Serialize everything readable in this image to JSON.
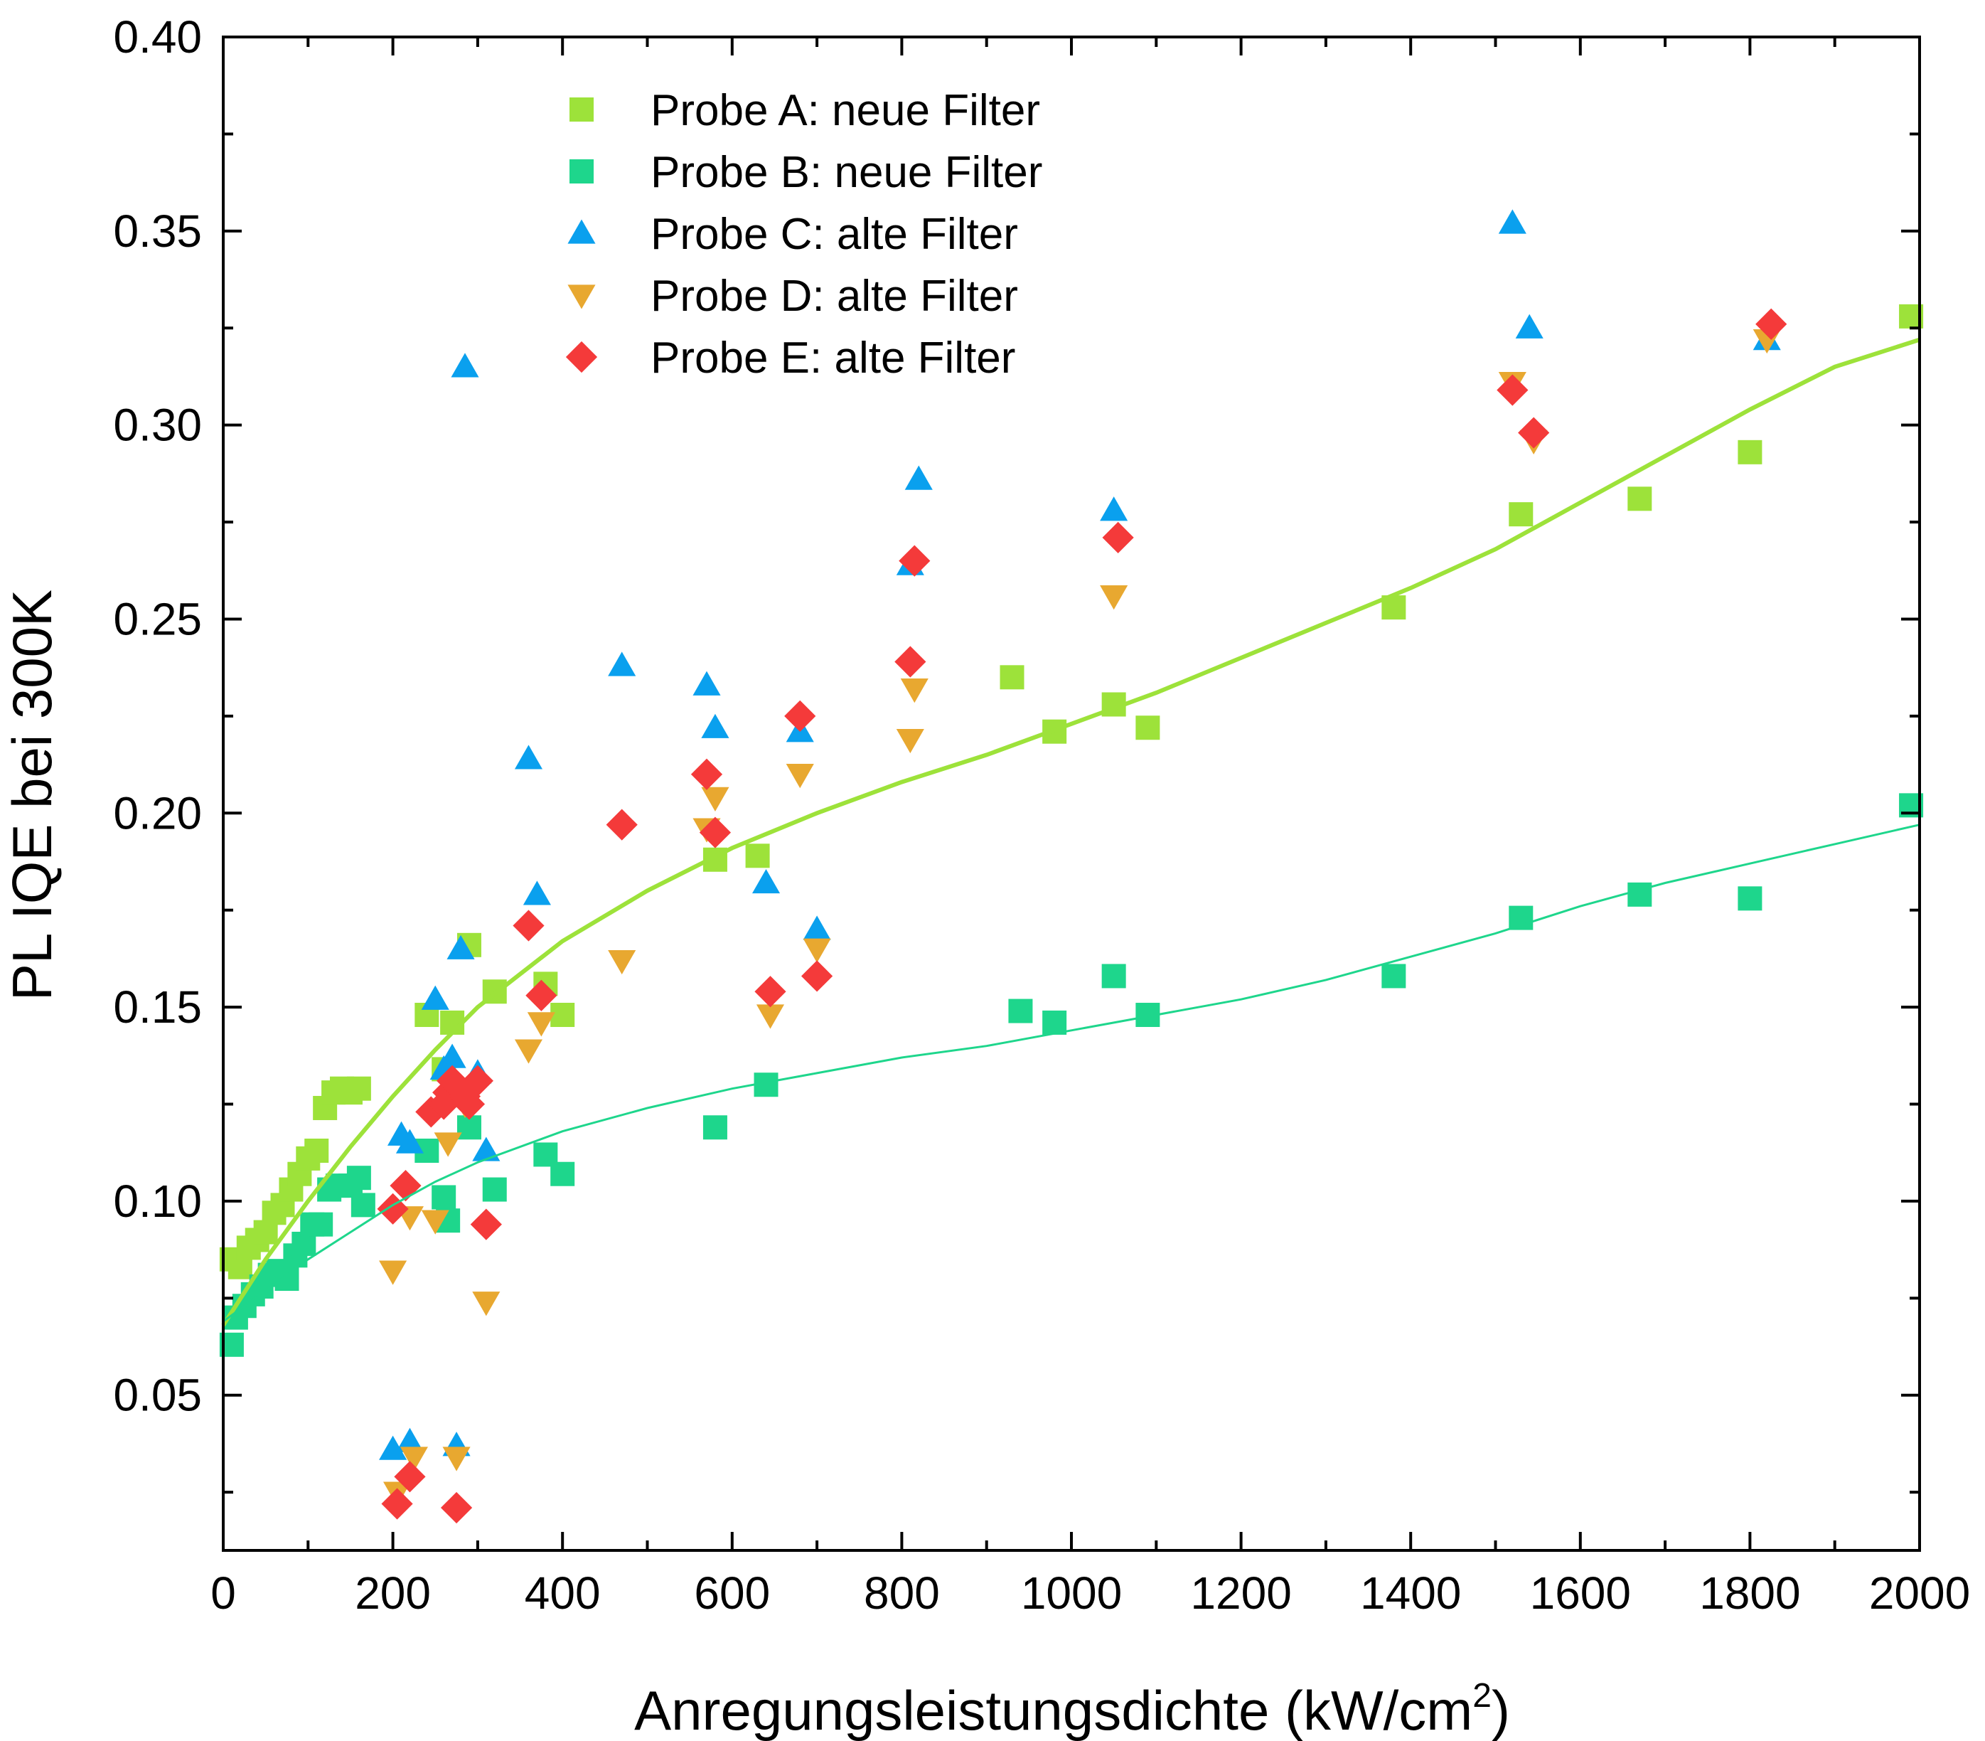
{
  "chart_data": {
    "type": "scatter",
    "title": "",
    "xlabel": "Anregungsleistungsdichte (kW/cm",
    "xlabel_sup": "2",
    "xlabel_close": ")",
    "ylabel": "PL IQE bei 300K",
    "xlim": [
      0,
      2000
    ],
    "ylim": [
      0.01,
      0.4
    ],
    "x_ticks": [
      0,
      200,
      400,
      600,
      800,
      1000,
      1200,
      1400,
      1600,
      1800,
      2000
    ],
    "x_tick_labels": [
      "0",
      "200",
      "400",
      "600",
      "800",
      "1000",
      "1200",
      "1400",
      "1600",
      "1800",
      "2000"
    ],
    "y_ticks": [
      0.05,
      0.1,
      0.15,
      0.2,
      0.25,
      0.3,
      0.35,
      0.4
    ],
    "y_tick_labels": [
      "0.05",
      "0.10",
      "0.15",
      "0.20",
      "0.25",
      "0.30",
      "0.35",
      "0.40"
    ],
    "grid": false,
    "legend_position": "top-left",
    "series": [
      {
        "name": "Probe A: neue Filter",
        "marker": "square",
        "color": "#9de23a",
        "points": [
          [
            10,
            0.085
          ],
          [
            20,
            0.083
          ],
          [
            30,
            0.088
          ],
          [
            40,
            0.09
          ],
          [
            50,
            0.092
          ],
          [
            60,
            0.097
          ],
          [
            70,
            0.099
          ],
          [
            80,
            0.103
          ],
          [
            90,
            0.107
          ],
          [
            100,
            0.111
          ],
          [
            110,
            0.113
          ],
          [
            120,
            0.124
          ],
          [
            130,
            0.128
          ],
          [
            140,
            0.129
          ],
          [
            150,
            0.128
          ],
          [
            160,
            0.129
          ],
          [
            240,
            0.148
          ],
          [
            260,
            0.134
          ],
          [
            270,
            0.146
          ],
          [
            290,
            0.166
          ],
          [
            320,
            0.154
          ],
          [
            380,
            0.156
          ],
          [
            400,
            0.148
          ],
          [
            580,
            0.188
          ],
          [
            630,
            0.189
          ],
          [
            930,
            0.235
          ],
          [
            980,
            0.221
          ],
          [
            1050,
            0.228
          ],
          [
            1090,
            0.222
          ],
          [
            1380,
            0.253
          ],
          [
            1530,
            0.277
          ],
          [
            1670,
            0.281
          ],
          [
            1800,
            0.293
          ],
          [
            1990,
            0.328
          ]
        ]
      },
      {
        "name": "Probe B: neue Filter",
        "marker": "square",
        "color": "#1ed68c",
        "points": [
          [
            10,
            0.063
          ],
          [
            15,
            0.07
          ],
          [
            25,
            0.073
          ],
          [
            35,
            0.076
          ],
          [
            45,
            0.078
          ],
          [
            55,
            0.081
          ],
          [
            65,
            0.082
          ],
          [
            75,
            0.08
          ],
          [
            85,
            0.086
          ],
          [
            95,
            0.089
          ],
          [
            105,
            0.094
          ],
          [
            115,
            0.094
          ],
          [
            125,
            0.103
          ],
          [
            135,
            0.104
          ],
          [
            150,
            0.104
          ],
          [
            160,
            0.106
          ],
          [
            165,
            0.099
          ],
          [
            240,
            0.113
          ],
          [
            260,
            0.101
          ],
          [
            265,
            0.095
          ],
          [
            290,
            0.119
          ],
          [
            320,
            0.103
          ],
          [
            380,
            0.112
          ],
          [
            400,
            0.107
          ],
          [
            580,
            0.119
          ],
          [
            640,
            0.13
          ],
          [
            940,
            0.149
          ],
          [
            980,
            0.146
          ],
          [
            1050,
            0.158
          ],
          [
            1090,
            0.148
          ],
          [
            1380,
            0.158
          ],
          [
            1530,
            0.173
          ],
          [
            1670,
            0.179
          ],
          [
            1800,
            0.178
          ],
          [
            1990,
            0.202
          ]
        ]
      },
      {
        "name": "Probe C: alte Filter",
        "marker": "triangle-up",
        "color": "#0aa0ee",
        "points": [
          [
            200,
            0.036
          ],
          [
            210,
            0.117
          ],
          [
            220,
            0.115
          ],
          [
            220,
            0.038
          ],
          [
            250,
            0.152
          ],
          [
            260,
            0.134
          ],
          [
            270,
            0.137
          ],
          [
            275,
            0.037
          ],
          [
            280,
            0.165
          ],
          [
            285,
            0.315
          ],
          [
            300,
            0.133
          ],
          [
            310,
            0.113
          ],
          [
            360,
            0.214
          ],
          [
            370,
            0.179
          ],
          [
            470,
            0.238
          ],
          [
            570,
            0.233
          ],
          [
            580,
            0.222
          ],
          [
            640,
            0.182
          ],
          [
            680,
            0.221
          ],
          [
            700,
            0.17
          ],
          [
            810,
            0.264
          ],
          [
            820,
            0.286
          ],
          [
            1050,
            0.278
          ],
          [
            1520,
            0.352
          ],
          [
            1540,
            0.325
          ],
          [
            1820,
            0.322
          ]
        ]
      },
      {
        "name": "Probe D: alte Filter",
        "marker": "triangle-down",
        "color": "#e8a830",
        "points": [
          [
            200,
            0.082
          ],
          [
            205,
            0.025
          ],
          [
            220,
            0.096
          ],
          [
            225,
            0.034
          ],
          [
            250,
            0.095
          ],
          [
            265,
            0.115
          ],
          [
            275,
            0.034
          ],
          [
            285,
            0.125
          ],
          [
            310,
            0.074
          ],
          [
            360,
            0.139
          ],
          [
            375,
            0.146
          ],
          [
            470,
            0.162
          ],
          [
            570,
            0.196
          ],
          [
            580,
            0.204
          ],
          [
            645,
            0.148
          ],
          [
            680,
            0.21
          ],
          [
            700,
            0.165
          ],
          [
            810,
            0.219
          ],
          [
            815,
            0.232
          ],
          [
            1050,
            0.256
          ],
          [
            1520,
            0.311
          ],
          [
            1545,
            0.296
          ],
          [
            1820,
            0.322
          ]
        ]
      },
      {
        "name": "Probe E: alte Filter",
        "marker": "diamond",
        "color": "#f43a3a",
        "points": [
          [
            200,
            0.098
          ],
          [
            205,
            0.022
          ],
          [
            215,
            0.104
          ],
          [
            220,
            0.029
          ],
          [
            245,
            0.123
          ],
          [
            260,
            0.125
          ],
          [
            265,
            0.128
          ],
          [
            270,
            0.131
          ],
          [
            275,
            0.021
          ],
          [
            285,
            0.127
          ],
          [
            290,
            0.125
          ],
          [
            300,
            0.131
          ],
          [
            310,
            0.094
          ],
          [
            360,
            0.171
          ],
          [
            375,
            0.153
          ],
          [
            470,
            0.197
          ],
          [
            570,
            0.21
          ],
          [
            580,
            0.195
          ],
          [
            645,
            0.154
          ],
          [
            680,
            0.225
          ],
          [
            700,
            0.158
          ],
          [
            810,
            0.239
          ],
          [
            815,
            0.265
          ],
          [
            1055,
            0.271
          ],
          [
            1520,
            0.309
          ],
          [
            1545,
            0.298
          ],
          [
            1825,
            0.326
          ]
        ]
      }
    ],
    "fits": [
      {
        "series": "Probe A: neue Filter",
        "color": "#9de23a",
        "points": [
          [
            0,
            0.068
          ],
          [
            50,
            0.085
          ],
          [
            100,
            0.1
          ],
          [
            150,
            0.114
          ],
          [
            200,
            0.127
          ],
          [
            250,
            0.139
          ],
          [
            300,
            0.15
          ],
          [
            400,
            0.167
          ],
          [
            500,
            0.18
          ],
          [
            600,
            0.191
          ],
          [
            700,
            0.2
          ],
          [
            800,
            0.208
          ],
          [
            900,
            0.215
          ],
          [
            1000,
            0.223
          ],
          [
            1100,
            0.231
          ],
          [
            1200,
            0.24
          ],
          [
            1300,
            0.249
          ],
          [
            1400,
            0.258
          ],
          [
            1500,
            0.268
          ],
          [
            1600,
            0.28
          ],
          [
            1700,
            0.292
          ],
          [
            1800,
            0.304
          ],
          [
            1900,
            0.315
          ],
          [
            2000,
            0.322
          ]
        ]
      },
      {
        "series": "Probe B: neue Filter",
        "color": "#1ed68c",
        "points": [
          [
            0,
            0.069
          ],
          [
            50,
            0.077
          ],
          [
            100,
            0.085
          ],
          [
            150,
            0.092
          ],
          [
            200,
            0.099
          ],
          [
            250,
            0.105
          ],
          [
            300,
            0.11
          ],
          [
            400,
            0.118
          ],
          [
            500,
            0.124
          ],
          [
            600,
            0.129
          ],
          [
            700,
            0.133
          ],
          [
            800,
            0.137
          ],
          [
            900,
            0.14
          ],
          [
            1000,
            0.144
          ],
          [
            1100,
            0.148
          ],
          [
            1200,
            0.152
          ],
          [
            1300,
            0.157
          ],
          [
            1400,
            0.163
          ],
          [
            1500,
            0.169
          ],
          [
            1600,
            0.176
          ],
          [
            1700,
            0.182
          ],
          [
            1800,
            0.187
          ],
          [
            1900,
            0.192
          ],
          [
            2000,
            0.197
          ]
        ]
      }
    ]
  }
}
